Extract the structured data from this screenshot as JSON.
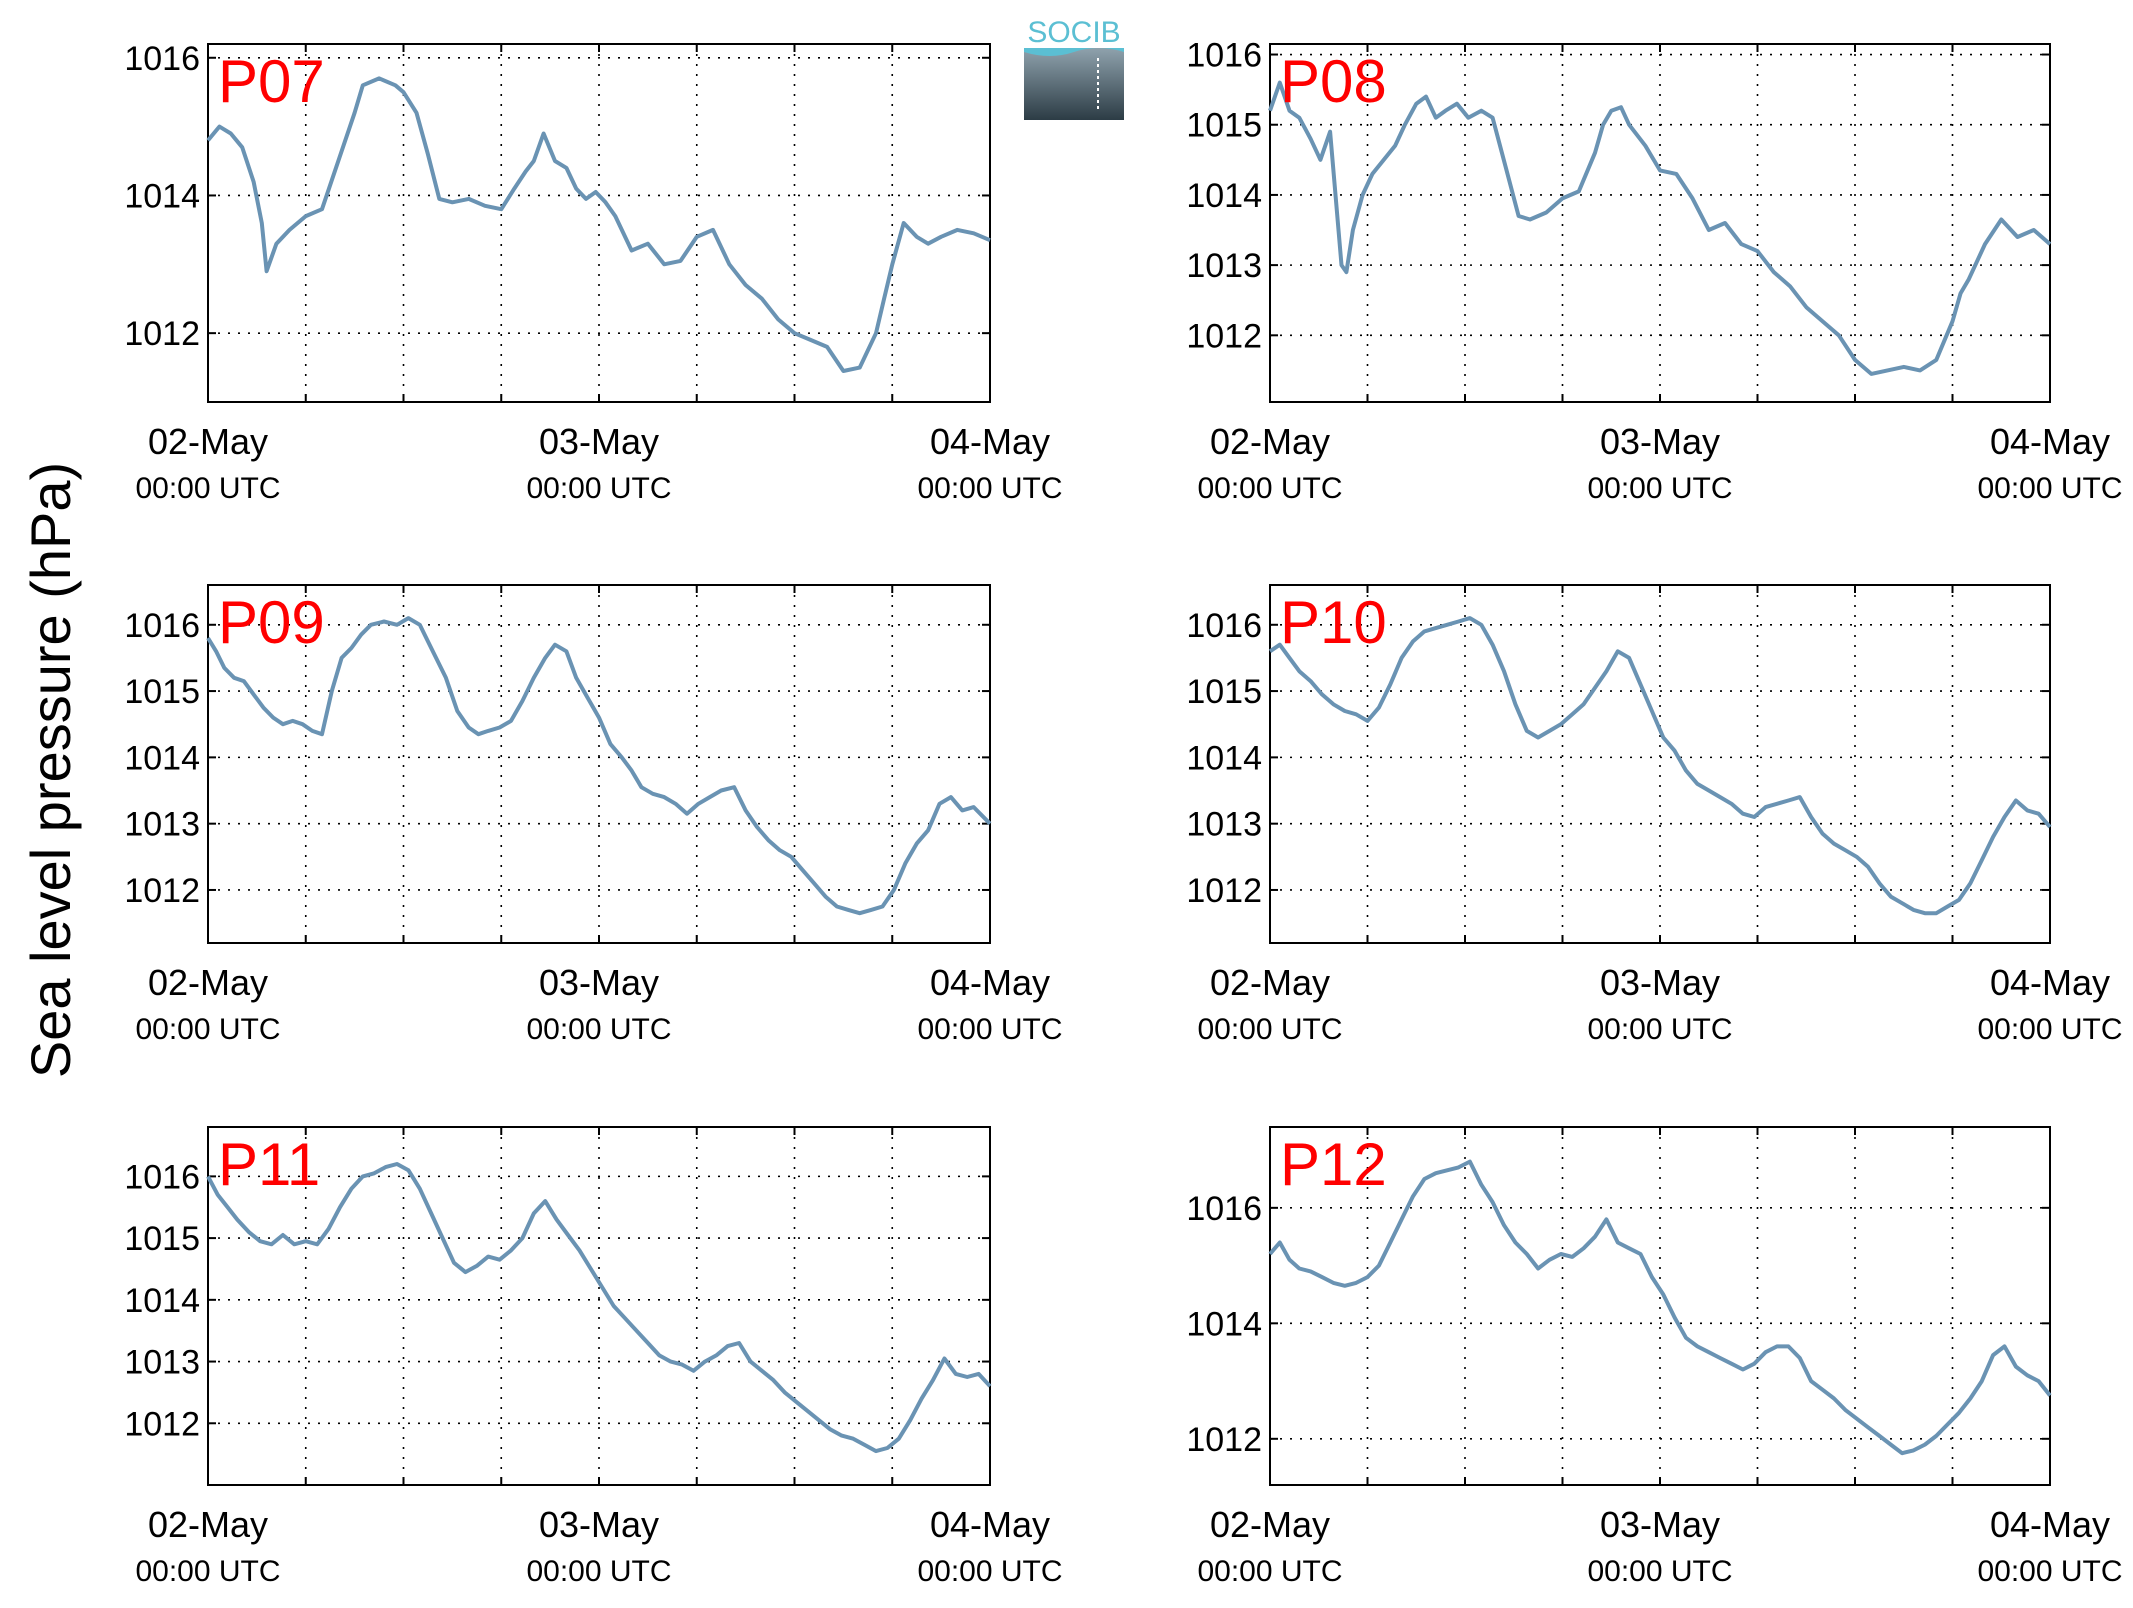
{
  "figure": {
    "ylabel": "Sea level pressure (hPa)",
    "logo": {
      "text": "SOCIB"
    },
    "colors": {
      "line": "#6a93b3",
      "panel_label": "#ff0000",
      "grid": "#000000",
      "logo_top": "#5bbfd3",
      "logo_dark": "#2c3c45"
    }
  },
  "chart_data": [
    {
      "type": "line",
      "title": "P07",
      "xlim": [
        0,
        48
      ],
      "ylim": [
        1011,
        1016.2
      ],
      "yticks": [
        1012,
        1014,
        1016
      ],
      "xticks": [
        {
          "x": 0,
          "date": "02-May",
          "time": "00:00 UTC"
        },
        {
          "x": 24,
          "date": "03-May",
          "time": "00:00 UTC"
        },
        {
          "x": 48,
          "date": "04-May",
          "time": "00:00 UTC"
        }
      ],
      "minor_xticks": [
        6,
        12,
        18,
        30,
        36,
        42
      ],
      "grid": true,
      "x": [
        0,
        0.7,
        1.4,
        2.1,
        2.8,
        3.3,
        3.6,
        4.2,
        5,
        6,
        7,
        8,
        9,
        9.5,
        10.5,
        11.5,
        12,
        12.8,
        13.5,
        14.2,
        15,
        16,
        17,
        18,
        18.8,
        19.5,
        20,
        20.6,
        21.3,
        22,
        22.6,
        23.2,
        23.8,
        24.4,
        25,
        26,
        27,
        28,
        29,
        30,
        31,
        32,
        33,
        34,
        35,
        36,
        37,
        38,
        39,
        40,
        41,
        41.5,
        42,
        42.7,
        43.5,
        44.2,
        45,
        46,
        47,
        48
      ],
      "y": [
        1014.8,
        1015.0,
        1014.9,
        1014.7,
        1014.2,
        1013.6,
        1012.9,
        1013.3,
        1013.5,
        1013.7,
        1013.8,
        1014.5,
        1015.2,
        1015.6,
        1015.7,
        1015.6,
        1015.5,
        1015.2,
        1014.6,
        1013.95,
        1013.9,
        1013.95,
        1013.85,
        1013.8,
        1014.1,
        1014.35,
        1014.5,
        1014.9,
        1014.5,
        1014.4,
        1014.1,
        1013.95,
        1014.05,
        1013.9,
        1013.7,
        1013.2,
        1013.3,
        1013.0,
        1013.05,
        1013.4,
        1013.5,
        1013.0,
        1012.7,
        1012.5,
        1012.2,
        1012.0,
        1011.9,
        1011.8,
        1011.45,
        1011.5,
        1012.0,
        1012.5,
        1013.0,
        1013.6,
        1013.4,
        1013.3,
        1013.4,
        1013.5,
        1013.45,
        1013.35
      ]
    },
    {
      "type": "line",
      "title": "P08",
      "xlim": [
        0,
        48
      ],
      "ylim": [
        1011.05,
        1016.15
      ],
      "yticks": [
        1012,
        1013,
        1014,
        1015,
        1016
      ],
      "xticks": [
        {
          "x": 0,
          "date": "02-May",
          "time": "00:00 UTC"
        },
        {
          "x": 24,
          "date": "03-May",
          "time": "00:00 UTC"
        },
        {
          "x": 48,
          "date": "04-May",
          "time": "00:00 UTC"
        }
      ],
      "minor_xticks": [
        6,
        12,
        18,
        30,
        36,
        42
      ],
      "grid": true,
      "x": [
        0,
        0.6,
        1.2,
        1.8,
        2.5,
        3.1,
        3.7,
        4.4,
        4.7,
        5.1,
        5.7,
        6.3,
        7,
        7.7,
        8.3,
        9,
        9.6,
        10.2,
        10.8,
        11.5,
        12.2,
        13,
        13.7,
        14.5,
        15.3,
        16,
        17,
        18,
        19,
        20,
        20.5,
        21,
        21.6,
        22.1,
        22.6,
        23.1,
        24,
        25,
        26,
        27,
        28,
        29,
        30,
        31,
        32,
        33,
        34,
        35,
        36,
        37,
        38,
        39,
        40,
        41,
        42,
        42.5,
        43,
        44,
        45,
        46,
        47,
        48
      ],
      "y": [
        1015.2,
        1015.6,
        1015.2,
        1015.1,
        1014.8,
        1014.5,
        1014.9,
        1013.0,
        1012.9,
        1013.5,
        1014.0,
        1014.3,
        1014.5,
        1014.7,
        1015.0,
        1015.3,
        1015.4,
        1015.1,
        1015.2,
        1015.3,
        1015.1,
        1015.2,
        1015.1,
        1014.4,
        1013.7,
        1013.65,
        1013.75,
        1013.95,
        1014.05,
        1014.6,
        1015.0,
        1015.2,
        1015.25,
        1015.0,
        1014.85,
        1014.7,
        1014.35,
        1014.3,
        1013.95,
        1013.5,
        1013.6,
        1013.3,
        1013.2,
        1012.9,
        1012.7,
        1012.4,
        1012.2,
        1012.0,
        1011.65,
        1011.45,
        1011.5,
        1011.55,
        1011.5,
        1011.65,
        1012.2,
        1012.6,
        1012.8,
        1013.3,
        1013.65,
        1013.4,
        1013.5,
        1013.3
      ]
    },
    {
      "type": "line",
      "title": "P09",
      "xlim": [
        0,
        48
      ],
      "ylim": [
        1011.2,
        1016.6
      ],
      "yticks": [
        1012,
        1013,
        1014,
        1015,
        1016
      ],
      "xticks": [
        {
          "x": 0,
          "date": "02-May",
          "time": "00:00 UTC"
        },
        {
          "x": 24,
          "date": "03-May",
          "time": "00:00 UTC"
        },
        {
          "x": 48,
          "date": "04-May",
          "time": "00:00 UTC"
        }
      ],
      "minor_xticks": [
        6,
        12,
        18,
        30,
        36,
        42
      ],
      "grid": true,
      "x": [
        0,
        0.5,
        1,
        1.6,
        2.2,
        2.8,
        3.4,
        4,
        4.6,
        5.2,
        5.8,
        6.4,
        7,
        7.6,
        8.2,
        8.8,
        9.4,
        10,
        10.8,
        11.6,
        12.3,
        13,
        13.8,
        14.6,
        15.3,
        16,
        16.6,
        17.2,
        17.9,
        18.6,
        19.3,
        20,
        20.7,
        21.3,
        22,
        22.6,
        23.3,
        24,
        24.7,
        25.4,
        26,
        26.6,
        27.3,
        28,
        28.7,
        29.4,
        30.1,
        30.8,
        31.5,
        32.3,
        33,
        33.7,
        34.4,
        35.1,
        35.8,
        36.5,
        37.2,
        37.9,
        38.6,
        39.3,
        40,
        40.7,
        41.4,
        42.1,
        42.8,
        43.5,
        44.2,
        44.9,
        45.6,
        46.3,
        47,
        48
      ],
      "y": [
        1015.8,
        1015.6,
        1015.35,
        1015.2,
        1015.15,
        1014.95,
        1014.75,
        1014.6,
        1014.5,
        1014.55,
        1014.5,
        1014.4,
        1014.35,
        1015.0,
        1015.5,
        1015.65,
        1015.85,
        1016.0,
        1016.05,
        1016.0,
        1016.1,
        1016.0,
        1015.6,
        1015.2,
        1014.7,
        1014.45,
        1014.35,
        1014.4,
        1014.45,
        1014.55,
        1014.85,
        1015.2,
        1015.5,
        1015.7,
        1015.6,
        1015.2,
        1014.9,
        1014.6,
        1014.2,
        1014.0,
        1013.8,
        1013.55,
        1013.45,
        1013.4,
        1013.3,
        1013.15,
        1013.3,
        1013.4,
        1013.5,
        1013.55,
        1013.2,
        1012.95,
        1012.75,
        1012.6,
        1012.5,
        1012.3,
        1012.1,
        1011.9,
        1011.75,
        1011.7,
        1011.65,
        1011.7,
        1011.75,
        1012.0,
        1012.4,
        1012.7,
        1012.9,
        1013.3,
        1013.4,
        1013.2,
        1013.25,
        1013.0
      ]
    },
    {
      "type": "line",
      "title": "P10",
      "xlim": [
        0,
        48
      ],
      "ylim": [
        1011.2,
        1016.6
      ],
      "yticks": [
        1012,
        1013,
        1014,
        1015,
        1016
      ],
      "xticks": [
        {
          "x": 0,
          "date": "02-May",
          "time": "00:00 UTC"
        },
        {
          "x": 24,
          "date": "03-May",
          "time": "00:00 UTC"
        },
        {
          "x": 48,
          "date": "04-May",
          "time": "00:00 UTC"
        }
      ],
      "minor_xticks": [
        6,
        12,
        18,
        30,
        36,
        42
      ],
      "grid": true,
      "x": [
        0,
        0.6,
        1.2,
        1.8,
        2.5,
        3.2,
        3.9,
        4.6,
        5.3,
        6,
        6.7,
        7.4,
        8.1,
        8.8,
        9.5,
        10.2,
        10.9,
        11.6,
        12.3,
        13,
        13.7,
        14.4,
        15.1,
        15.8,
        16.5,
        17.2,
        17.9,
        18.6,
        19.3,
        20,
        20.7,
        21.4,
        22.1,
        22.8,
        23.5,
        24.2,
        24.9,
        25.6,
        26.3,
        27,
        27.7,
        28.4,
        29.1,
        29.8,
        30.5,
        31.2,
        31.9,
        32.6,
        33.3,
        34,
        34.7,
        35.4,
        36.1,
        36.8,
        37.5,
        38.2,
        38.9,
        39.6,
        40.3,
        41,
        41.7,
        42.4,
        43.1,
        43.8,
        44.5,
        45.2,
        45.9,
        46.6,
        47.3,
        48
      ],
      "y": [
        1015.6,
        1015.7,
        1015.5,
        1015.3,
        1015.15,
        1014.95,
        1014.8,
        1014.7,
        1014.65,
        1014.55,
        1014.75,
        1015.1,
        1015.5,
        1015.75,
        1015.9,
        1015.95,
        1016.0,
        1016.05,
        1016.1,
        1016.0,
        1015.7,
        1015.3,
        1014.8,
        1014.4,
        1014.3,
        1014.4,
        1014.5,
        1014.65,
        1014.8,
        1015.05,
        1015.3,
        1015.6,
        1015.5,
        1015.1,
        1014.7,
        1014.3,
        1014.1,
        1013.8,
        1013.6,
        1013.5,
        1013.4,
        1013.3,
        1013.15,
        1013.1,
        1013.25,
        1013.3,
        1013.35,
        1013.4,
        1013.1,
        1012.85,
        1012.7,
        1012.6,
        1012.5,
        1012.35,
        1012.1,
        1011.9,
        1011.8,
        1011.7,
        1011.65,
        1011.65,
        1011.75,
        1011.85,
        1012.1,
        1012.45,
        1012.8,
        1013.1,
        1013.35,
        1013.2,
        1013.15,
        1012.95
      ]
    },
    {
      "type": "line",
      "title": "P11",
      "xlim": [
        0,
        48
      ],
      "ylim": [
        1011.0,
        1016.8
      ],
      "yticks": [
        1012,
        1013,
        1014,
        1015,
        1016
      ],
      "xticks": [
        {
          "x": 0,
          "date": "02-May",
          "time": "00:00 UTC"
        },
        {
          "x": 24,
          "date": "03-May",
          "time": "00:00 UTC"
        },
        {
          "x": 48,
          "date": "04-May",
          "time": "00:00 UTC"
        }
      ],
      "minor_xticks": [
        6,
        12,
        18,
        30,
        36,
        42
      ],
      "grid": true,
      "x": [
        0,
        0.6,
        1.2,
        1.8,
        2.5,
        3.2,
        3.9,
        4.6,
        5.3,
        6,
        6.7,
        7.4,
        8.1,
        8.8,
        9.5,
        10.2,
        10.9,
        11.6,
        12.3,
        13,
        13.7,
        14.4,
        15.1,
        15.8,
        16.5,
        17.2,
        17.9,
        18.6,
        19.3,
        20,
        20.7,
        21.4,
        22.1,
        22.8,
        23.5,
        24.2,
        24.9,
        25.6,
        26.3,
        27,
        27.7,
        28.4,
        29.1,
        29.8,
        30.5,
        31.2,
        31.9,
        32.6,
        33.3,
        34,
        34.7,
        35.4,
        36.1,
        36.8,
        37.5,
        38.2,
        38.9,
        39.6,
        40.3,
        41,
        41.7,
        42.4,
        43.1,
        43.8,
        44.5,
        45.2,
        45.9,
        46.6,
        47.3,
        48
      ],
      "y": [
        1016.0,
        1015.7,
        1015.5,
        1015.3,
        1015.1,
        1014.95,
        1014.9,
        1015.05,
        1014.9,
        1014.95,
        1014.9,
        1015.15,
        1015.5,
        1015.8,
        1016.0,
        1016.05,
        1016.15,
        1016.2,
        1016.1,
        1015.8,
        1015.4,
        1015.0,
        1014.6,
        1014.45,
        1014.55,
        1014.7,
        1014.65,
        1014.8,
        1015.0,
        1015.4,
        1015.6,
        1015.3,
        1015.05,
        1014.8,
        1014.5,
        1014.2,
        1013.9,
        1013.7,
        1013.5,
        1013.3,
        1013.1,
        1013.0,
        1012.95,
        1012.85,
        1013.0,
        1013.1,
        1013.25,
        1013.3,
        1013.0,
        1012.85,
        1012.7,
        1012.5,
        1012.35,
        1012.2,
        1012.05,
        1011.9,
        1011.8,
        1011.75,
        1011.65,
        1011.55,
        1011.6,
        1011.75,
        1012.05,
        1012.4,
        1012.7,
        1013.05,
        1012.8,
        1012.75,
        1012.8,
        1012.6
      ]
    },
    {
      "type": "line",
      "title": "P12",
      "xlim": [
        0,
        48
      ],
      "ylim": [
        1011.2,
        1017.4
      ],
      "yticks": [
        1012,
        1014,
        1016
      ],
      "xticks": [
        {
          "x": 0,
          "date": "02-May",
          "time": "00:00 UTC"
        },
        {
          "x": 24,
          "date": "03-May",
          "time": "00:00 UTC"
        },
        {
          "x": 48,
          "date": "04-May",
          "time": "00:00 UTC"
        }
      ],
      "minor_xticks": [
        6,
        12,
        18,
        30,
        36,
        42
      ],
      "grid": true,
      "x": [
        0,
        0.6,
        1.2,
        1.8,
        2.5,
        3.2,
        3.9,
        4.6,
        5.3,
        6,
        6.7,
        7.4,
        8.1,
        8.8,
        9.5,
        10.2,
        10.9,
        11.6,
        12.3,
        13,
        13.7,
        14.4,
        15.1,
        15.8,
        16.5,
        17.2,
        17.9,
        18.6,
        19.3,
        20,
        20.7,
        21.4,
        22.1,
        22.8,
        23.5,
        24.2,
        24.9,
        25.6,
        26.3,
        27,
        27.7,
        28.4,
        29.1,
        29.8,
        30.5,
        31.2,
        31.9,
        32.6,
        33.3,
        34,
        34.7,
        35.4,
        36.1,
        36.8,
        37.5,
        38.2,
        38.9,
        39.6,
        40.3,
        41,
        41.7,
        42.4,
        43.1,
        43.8,
        44.5,
        45.2,
        45.9,
        46.6,
        47.3,
        48
      ],
      "y": [
        1015.2,
        1015.4,
        1015.1,
        1014.95,
        1014.9,
        1014.8,
        1014.7,
        1014.65,
        1014.7,
        1014.8,
        1015.0,
        1015.4,
        1015.8,
        1016.2,
        1016.5,
        1016.6,
        1016.65,
        1016.7,
        1016.8,
        1016.4,
        1016.1,
        1015.7,
        1015.4,
        1015.2,
        1014.95,
        1015.1,
        1015.2,
        1015.15,
        1015.3,
        1015.5,
        1015.8,
        1015.4,
        1015.3,
        1015.2,
        1014.8,
        1014.5,
        1014.1,
        1013.75,
        1013.6,
        1013.5,
        1013.4,
        1013.3,
        1013.2,
        1013.3,
        1013.5,
        1013.6,
        1013.6,
        1013.4,
        1013.0,
        1012.85,
        1012.7,
        1012.5,
        1012.35,
        1012.2,
        1012.05,
        1011.9,
        1011.75,
        1011.8,
        1011.9,
        1012.05,
        1012.25,
        1012.45,
        1012.7,
        1013.0,
        1013.45,
        1013.6,
        1013.25,
        1013.1,
        1013.0,
        1012.75
      ]
    }
  ]
}
